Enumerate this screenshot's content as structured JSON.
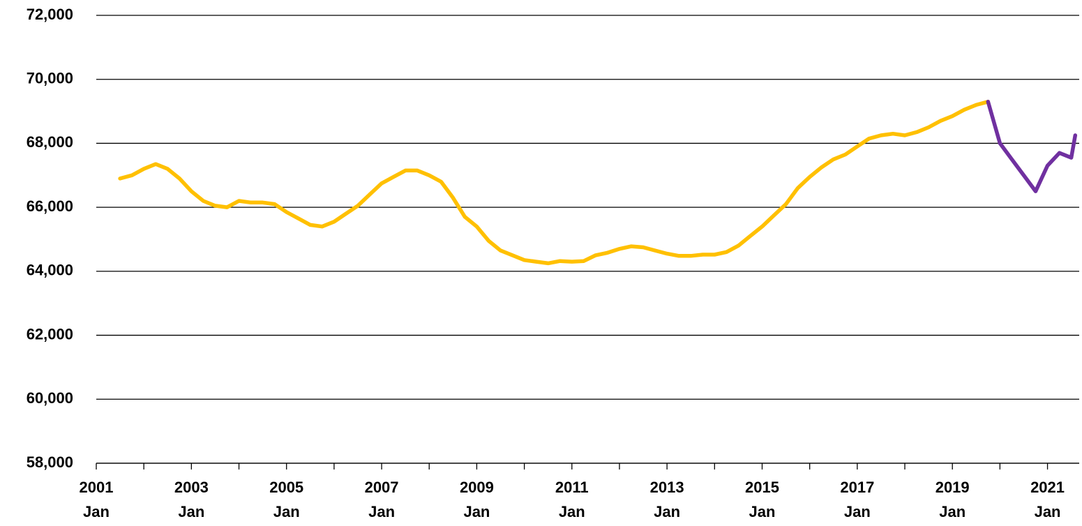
{
  "chart_data": {
    "type": "line",
    "x": [
      "2001-07",
      "2001-10",
      "2002-01",
      "2002-04",
      "2002-07",
      "2002-10",
      "2003-01",
      "2003-04",
      "2003-07",
      "2003-10",
      "2004-01",
      "2004-04",
      "2004-07",
      "2004-10",
      "2005-01",
      "2005-04",
      "2005-07",
      "2005-10",
      "2006-01",
      "2006-04",
      "2006-07",
      "2006-10",
      "2007-01",
      "2007-04",
      "2007-07",
      "2007-10",
      "2008-01",
      "2008-04",
      "2008-07",
      "2008-10",
      "2009-01",
      "2009-04",
      "2009-07",
      "2009-10",
      "2010-01",
      "2010-04",
      "2010-07",
      "2010-10",
      "2011-01",
      "2011-04",
      "2011-07",
      "2011-10",
      "2012-01",
      "2012-04",
      "2012-07",
      "2012-10",
      "2013-01",
      "2013-04",
      "2013-07",
      "2013-10",
      "2014-01",
      "2014-04",
      "2014-07",
      "2014-10",
      "2015-01",
      "2015-04",
      "2015-07",
      "2015-10",
      "2016-01",
      "2016-04",
      "2016-07",
      "2016-10",
      "2017-01",
      "2017-04",
      "2017-07",
      "2017-10",
      "2018-01",
      "2018-04",
      "2018-07",
      "2018-10",
      "2019-01",
      "2019-04",
      "2019-07",
      "2019-10",
      "2020-01",
      "2020-04",
      "2020-07",
      "2020-10",
      "2021-01",
      "2021-04",
      "2021-07",
      "2021-08"
    ],
    "series": [
      {
        "color": "#FFC000",
        "values": [
          66900,
          67000,
          67200,
          67350,
          67200,
          66900,
          66500,
          66200,
          66050,
          66000,
          66200,
          66150,
          66150,
          66100,
          65850,
          65650,
          65450,
          65400,
          65550,
          65800,
          66050,
          66400,
          66750,
          66950,
          67150,
          67150,
          67000,
          66800,
          66300,
          65700,
          65400,
          64950,
          64650,
          64500,
          64350,
          64300,
          64250,
          64320,
          64300,
          64320,
          64500,
          64580,
          64700,
          64780,
          64750,
          64650,
          64550,
          64480,
          64480,
          64520,
          64520,
          64600,
          64800,
          65100,
          65400,
          65750,
          66100,
          66600,
          66950,
          67250,
          67500,
          67650,
          67900,
          68150,
          68250,
          68300,
          68250,
          68350,
          68500,
          68700,
          68850,
          69050,
          69200,
          69300,
          null,
          null,
          null,
          null,
          null,
          null,
          null,
          null
        ]
      },
      {
        "color": "#7030A0",
        "values": [
          null,
          null,
          null,
          null,
          null,
          null,
          null,
          null,
          null,
          null,
          null,
          null,
          null,
          null,
          null,
          null,
          null,
          null,
          null,
          null,
          null,
          null,
          null,
          null,
          null,
          null,
          null,
          null,
          null,
          null,
          null,
          null,
          null,
          null,
          null,
          null,
          null,
          null,
          null,
          null,
          null,
          null,
          null,
          null,
          null,
          null,
          null,
          null,
          null,
          null,
          null,
          null,
          null,
          null,
          null,
          null,
          null,
          null,
          null,
          null,
          null,
          null,
          null,
          null,
          null,
          null,
          null,
          null,
          null,
          null,
          null,
          null,
          null,
          69300,
          68000,
          67500,
          67000,
          66500,
          67300,
          67700,
          67550,
          68250
        ]
      }
    ],
    "xlim": [
      "2001-01",
      "2021-09"
    ],
    "xticks": [
      {
        "value": "2001-01",
        "label": [
          "2001",
          "Jan"
        ]
      },
      {
        "value": "2003-01",
        "label": [
          "2003",
          "Jan"
        ]
      },
      {
        "value": "2005-01",
        "label": [
          "2005",
          "Jan"
        ]
      },
      {
        "value": "2007-01",
        "label": [
          "2007",
          "Jan"
        ]
      },
      {
        "value": "2009-01",
        "label": [
          "2009",
          "Jan"
        ]
      },
      {
        "value": "2011-01",
        "label": [
          "2011",
          "Jan"
        ]
      },
      {
        "value": "2013-01",
        "label": [
          "2013",
          "Jan"
        ]
      },
      {
        "value": "2015-01",
        "label": [
          "2015",
          "Jan"
        ]
      },
      {
        "value": "2017-01",
        "label": [
          "2017",
          "Jan"
        ]
      },
      {
        "value": "2019-01",
        "label": [
          "2019",
          "Jan"
        ]
      },
      {
        "value": "2021-01",
        "label": [
          "2021",
          "Jan"
        ]
      }
    ],
    "xminorticks": [
      "2002-01",
      "2004-01",
      "2006-01",
      "2008-01",
      "2010-01",
      "2012-01",
      "2014-01",
      "2016-01",
      "2018-01",
      "2020-01"
    ],
    "ylim": [
      58000,
      72000
    ],
    "yticks": [
      {
        "value": 58000,
        "label": "58,000"
      },
      {
        "value": 60000,
        "label": "60,000"
      },
      {
        "value": 62000,
        "label": "62,000"
      },
      {
        "value": 64000,
        "label": "64,000"
      },
      {
        "value": 66000,
        "label": "66,000"
      },
      {
        "value": 68000,
        "label": "68,000"
      },
      {
        "value": 70000,
        "label": "70,000"
      },
      {
        "value": 72000,
        "label": "72,000"
      }
    ],
    "grid": true
  }
}
